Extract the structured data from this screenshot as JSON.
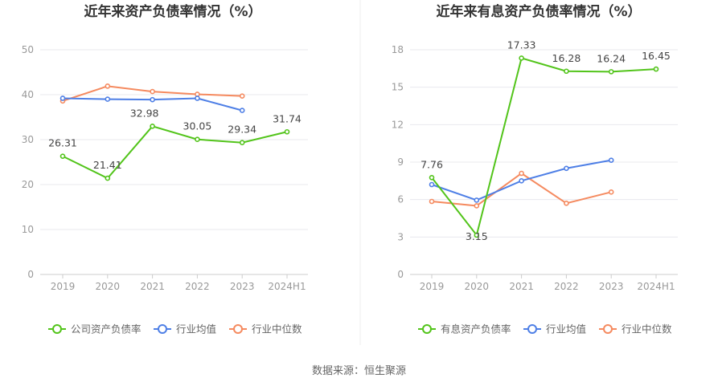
{
  "source_label": "数据来源：恒生聚源",
  "chart_data": [
    {
      "type": "line",
      "title": "近年来资产负债率情况（%）",
      "categories": [
        "2019",
        "2020",
        "2021",
        "2022",
        "2023",
        "2024H1"
      ],
      "ylim": [
        0,
        50
      ],
      "yticks": [
        0,
        10,
        20,
        30,
        40,
        50
      ],
      "grid": true,
      "legend_position": "bottom",
      "series": [
        {
          "name": "公司资产负债率",
          "color": "#52c41a",
          "values": [
            26.31,
            21.41,
            32.98,
            30.05,
            29.34,
            31.74
          ],
          "labels": [
            "26.31",
            "21.41",
            "32.98",
            "30.05",
            "29.34",
            "31.74"
          ]
        },
        {
          "name": "行业均值",
          "color": "#4e7fe6",
          "values": [
            39.2,
            39.0,
            38.9,
            39.2,
            36.5,
            null
          ]
        },
        {
          "name": "行业中位数",
          "color": "#f58a5f",
          "values": [
            38.6,
            41.9,
            40.7,
            40.1,
            39.7,
            null
          ]
        }
      ]
    },
    {
      "type": "line",
      "title": "近年来有息资产负债率情况（%）",
      "categories": [
        "2019",
        "2020",
        "2021",
        "2022",
        "2023",
        "2024H1"
      ],
      "ylim": [
        0,
        18
      ],
      "yticks": [
        0,
        3,
        6,
        9,
        12,
        15,
        18
      ],
      "grid": true,
      "legend_position": "bottom",
      "series": [
        {
          "name": "有息资产负债率",
          "color": "#52c41a",
          "values": [
            7.76,
            3.15,
            17.33,
            16.28,
            16.24,
            16.45
          ],
          "labels": [
            "7.76",
            "3.15",
            "17.33",
            "16.28",
            "16.24",
            "16.45"
          ]
        },
        {
          "name": "行业均值",
          "color": "#4e7fe6",
          "values": [
            7.2,
            5.95,
            7.5,
            8.5,
            9.15,
            null
          ]
        },
        {
          "name": "行业中位数",
          "color": "#f58a5f",
          "values": [
            5.85,
            5.5,
            8.1,
            5.7,
            6.6,
            null
          ]
        }
      ]
    }
  ]
}
